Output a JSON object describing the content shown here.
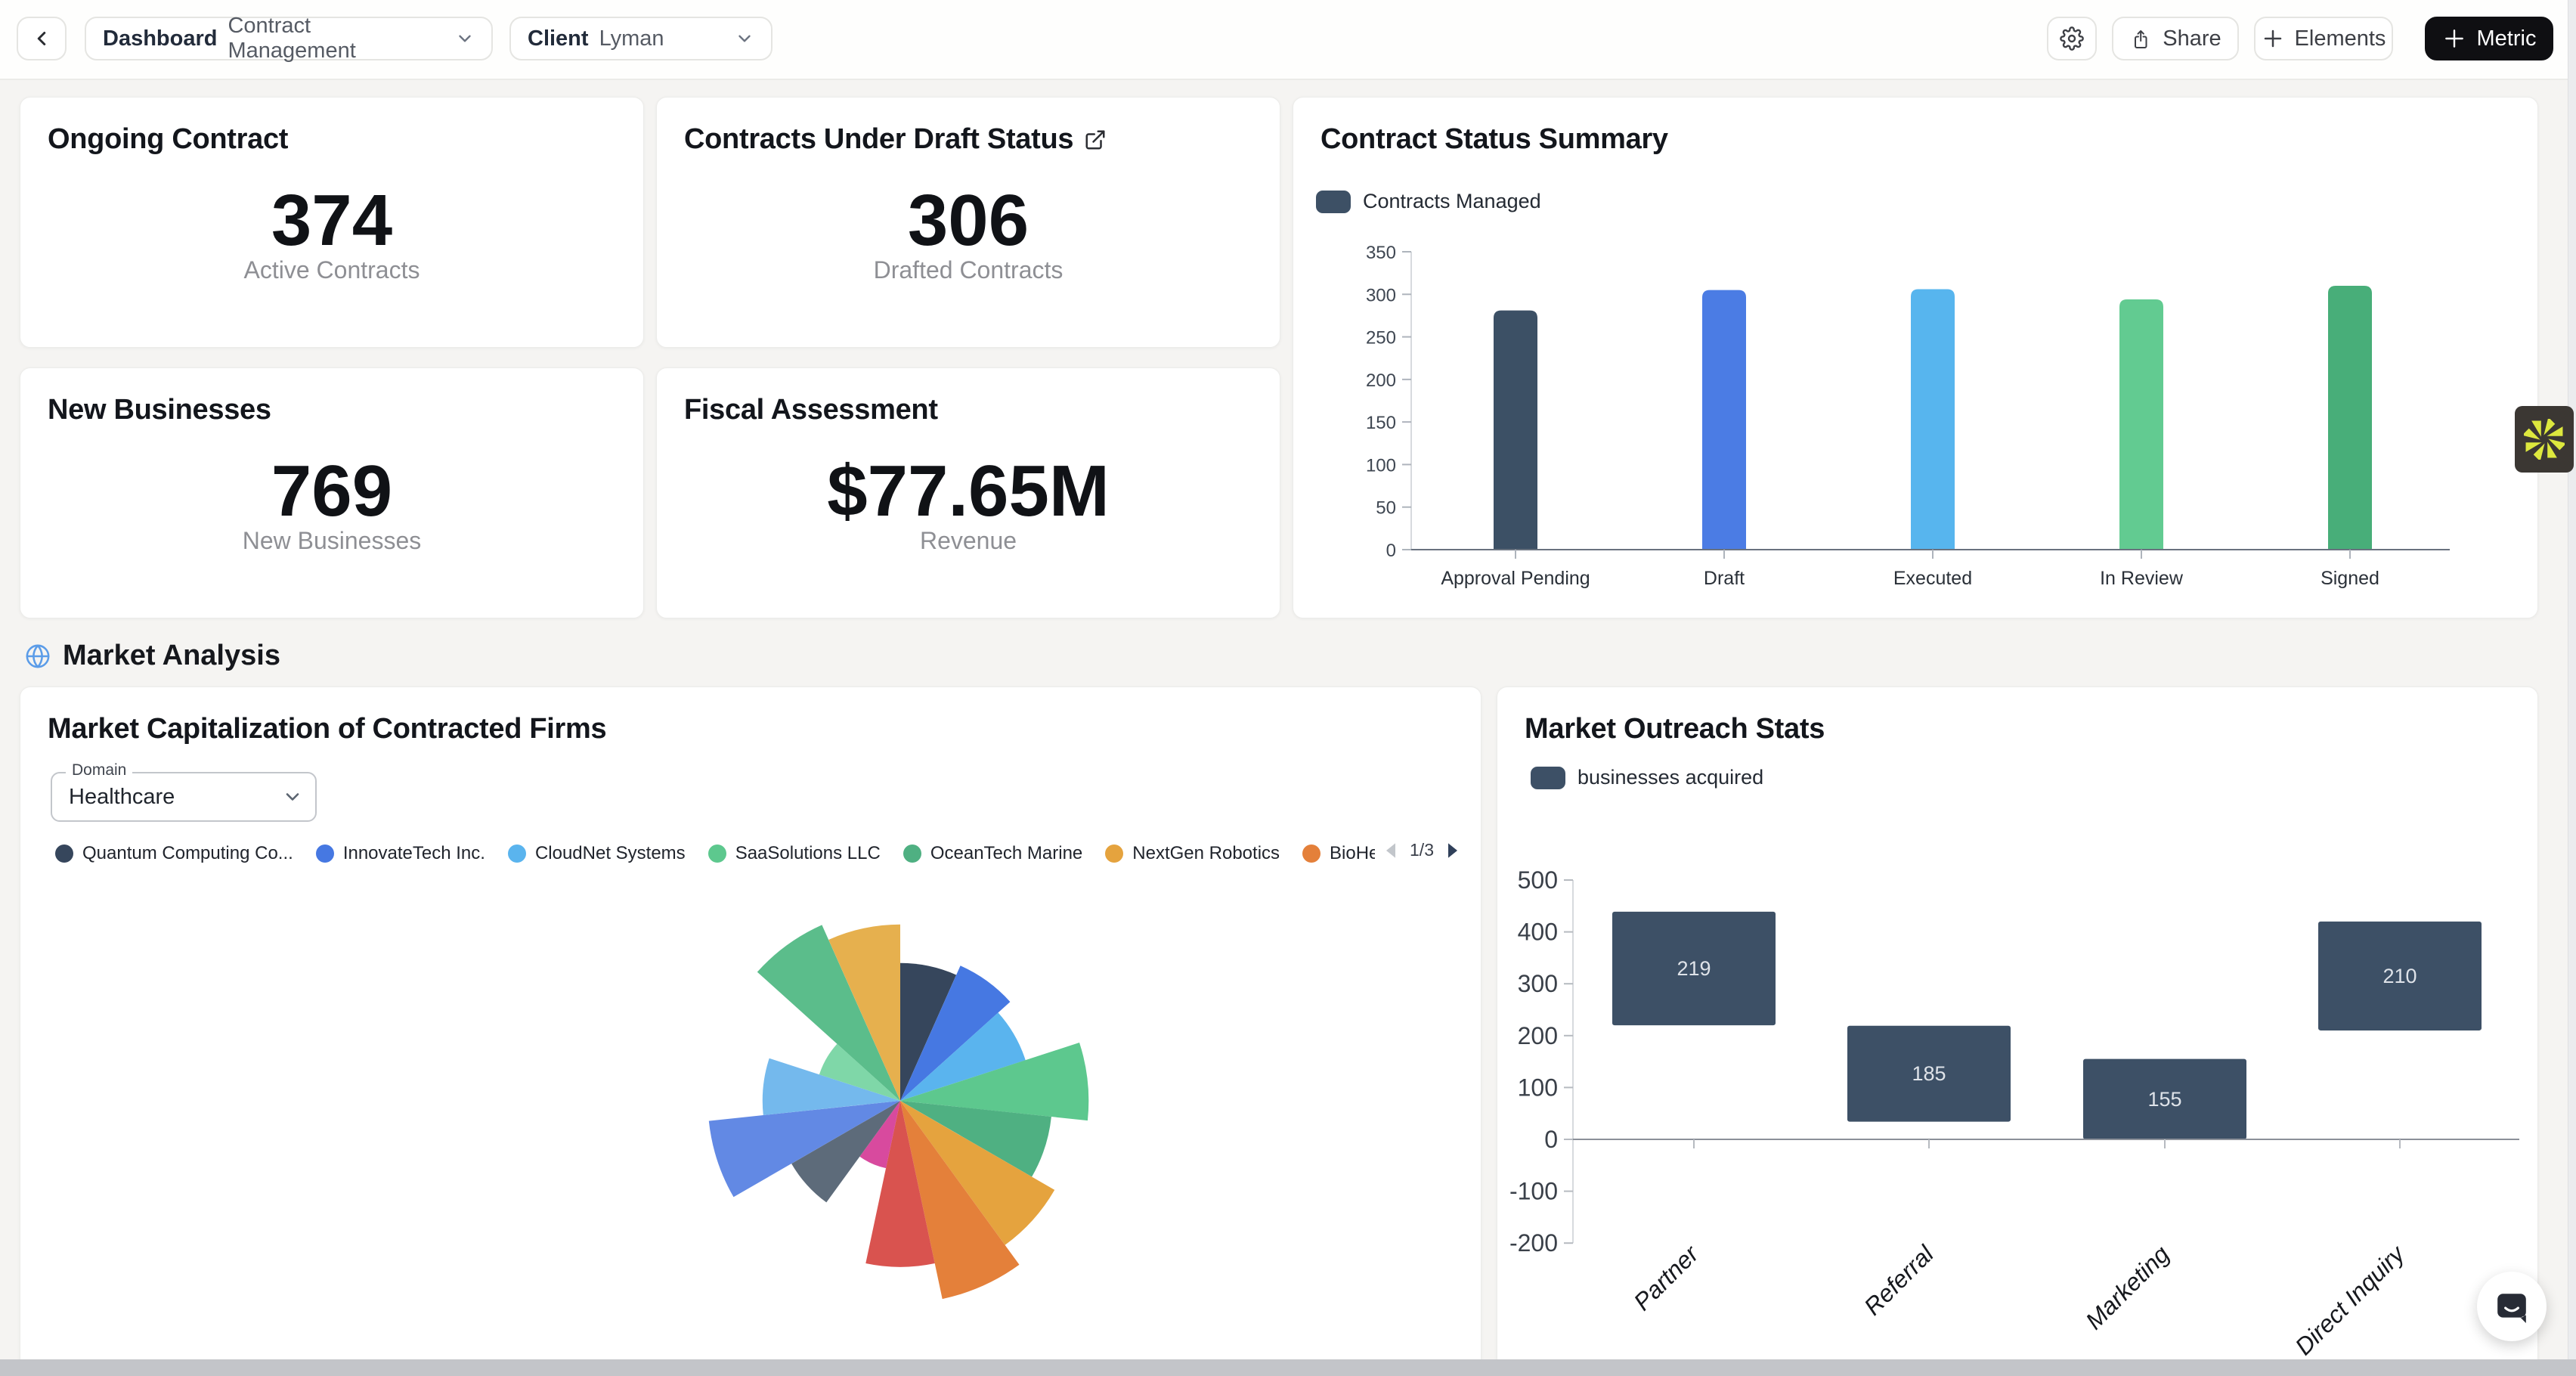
{
  "topbar": {
    "dashboard_label": "Dashboard",
    "dashboard_value": "Contract Management",
    "client_label": "Client",
    "client_value": "Lyman",
    "share_label": "Share",
    "elements_label": "Elements",
    "metric_label": "Metric"
  },
  "metric_cards": [
    {
      "title": "Ongoing Contract",
      "value": "374",
      "caption": "Active Contracts"
    },
    {
      "title": "Contracts Under Draft Status",
      "value": "306",
      "caption": "Drafted Contracts"
    },
    {
      "title": "New Businesses",
      "value": "769",
      "caption": "New Businesses"
    },
    {
      "title": "Fiscal Assessment",
      "value": "$77.65M",
      "caption": "Revenue"
    }
  ],
  "status_card": {
    "title": "Contract Status Summary",
    "legend_label": "Contracts Managed",
    "legend_color": "#3d5065"
  },
  "section_header": {
    "title": "Market Analysis"
  },
  "market_cap_card": {
    "title": "Market Capitalization of Contracted Firms",
    "domain_label": "Domain",
    "domain_value": "Healthcare",
    "legend": [
      {
        "label": "Quantum Computing Co...",
        "color": "#36465c"
      },
      {
        "label": "InnovateTech Inc.",
        "color": "#4678e2"
      },
      {
        "label": "CloudNet Systems",
        "color": "#5ab4ee"
      },
      {
        "label": "SaaSolutions LLC",
        "color": "#5dc88e"
      },
      {
        "label": "OceanTech Marine",
        "color": "#4fb082"
      },
      {
        "label": "NextGen Robotics",
        "color": "#e5a33e"
      },
      {
        "label": "BioHealth Sol",
        "color": "#e4803a"
      }
    ],
    "pagination": "1/3"
  },
  "outreach_card": {
    "title": "Market Outreach Stats",
    "legend_label": "businesses acquired",
    "legend_color": "#3d5066"
  },
  "icons": {
    "back": "chevron-left",
    "dropdown": "chevron-down",
    "settings": "gear",
    "share": "share-up-arrow",
    "add": "plus",
    "external": "external-link",
    "globe": "globe",
    "legend_prev": "triangle-left",
    "legend_next": "triangle-right",
    "widget": "pinwheel-asterisk",
    "chat": "chat-bubble-smile"
  },
  "colors": {
    "page_bg": "#f5f4f2",
    "topbar_bg": "#fefefd",
    "card_bg": "#ffffff",
    "metric_button_bg": "#0f0f12",
    "scrollbar": "#c3c5c9",
    "pinwheel_bg": "#3b3733",
    "pinwheel_icon": "#dde83e",
    "globe_icon": "#5b9ce8"
  },
  "chart_data": [
    {
      "id": "contract-status-summary",
      "type": "bar",
      "title": "Contract Status Summary",
      "legend": [
        "Contracts Managed"
      ],
      "legend_position": "top-left",
      "categories": [
        "Approval Pending",
        "Draft",
        "Executed",
        "In Review",
        "Signed"
      ],
      "values": [
        281,
        305,
        306,
        294,
        310
      ],
      "bar_colors": [
        "#3c5065",
        "#4b7ce4",
        "#57b5ee",
        "#62cb91",
        "#48ae79"
      ],
      "xlabel": "",
      "ylabel": "",
      "ylim": [
        0,
        350
      ],
      "ytick_step": 50,
      "grid": false
    },
    {
      "id": "market-cap-rose",
      "type": "pie",
      "variant": "rose-equal-angle",
      "title": "Market Capitalization of Contracted Firms",
      "legend_visible": [
        "Quantum Computing Co...",
        "InnovateTech Inc.",
        "CloudNet Systems",
        "SaaSolutions LLC",
        "OceanTech Marine",
        "NextGen Robotics",
        "BioHealth Sol"
      ],
      "legend_page": "1/3",
      "segments": [
        {
          "name": "Quantum Computing Co...",
          "color": "#36465c",
          "relative_radius": 0.68
        },
        {
          "name": "InnovateTech Inc.",
          "color": "#4678e2",
          "relative_radius": 0.73
        },
        {
          "name": "CloudNet Systems",
          "color": "#5ab4ee",
          "relative_radius": 0.65
        },
        {
          "name": "SaaSolutions LLC",
          "color": "#5dc88e",
          "relative_radius": 0.93
        },
        {
          "name": "OceanTech Marine",
          "color": "#4fb082",
          "relative_radius": 0.75
        },
        {
          "name": "NextGen Robotics",
          "color": "#e5a33e",
          "relative_radius": 0.88
        },
        {
          "name": "BioHealth Sol",
          "color": "#e4803a",
          "relative_radius": 1.0
        },
        {
          "name": "",
          "color": "#d9534f",
          "relative_radius": 0.82
        },
        {
          "name": "",
          "color": "#d84a9e",
          "relative_radius": 0.34
        },
        {
          "name": "",
          "color": "#5d6b7a",
          "relative_radius": 0.62
        },
        {
          "name": "",
          "color": "#6289e4",
          "relative_radius": 0.95
        },
        {
          "name": "",
          "color": "#74b9ed",
          "relative_radius": 0.68
        },
        {
          "name": "",
          "color": "#7fd7a8",
          "relative_radius": 0.42
        },
        {
          "name": "",
          "color": "#5bbd8b",
          "relative_radius": 0.95
        },
        {
          "name": "",
          "color": "#e6b04e",
          "relative_radius": 0.87
        }
      ]
    },
    {
      "id": "market-outreach-stats",
      "type": "bar",
      "variant": "floating-range",
      "title": "Market Outreach Stats",
      "legend": [
        "businesses acquired"
      ],
      "categories": [
        "Partner",
        "Referral",
        "Marketing",
        "Direct Inquiry"
      ],
      "series": [
        {
          "name": "businesses acquired",
          "color": "#3d5066",
          "base": [
            220,
            34,
            0,
            210
          ],
          "values": [
            219,
            185,
            155,
            210
          ],
          "labels": [
            "219",
            "185",
            "155",
            "210"
          ]
        }
      ],
      "xlabel": "",
      "ylabel": "",
      "ylim": [
        -200,
        500
      ],
      "ytick_step": 100,
      "grid": false
    }
  ]
}
